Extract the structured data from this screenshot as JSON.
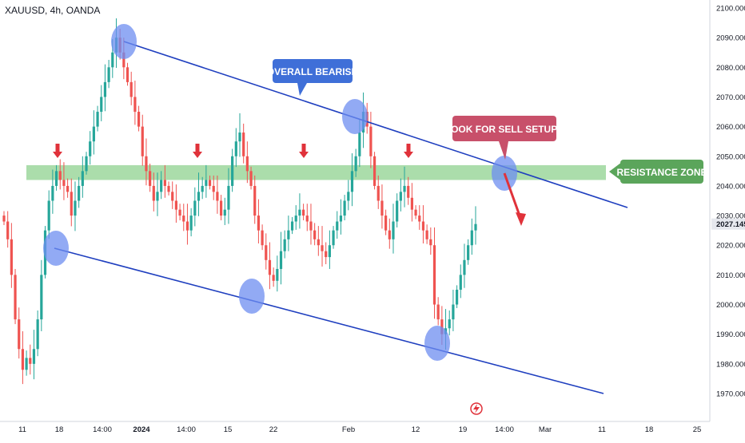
{
  "symbol_label": "XAUUSD, 4h, OANDA",
  "price_axis": {
    "ticks": [
      "2100.000",
      "2090.000",
      "2080.000",
      "2070.000",
      "2060.000",
      "2050.000",
      "2040.000",
      "2030.000",
      "2020.000",
      "2010.000",
      "2000.000",
      "1990.000",
      "1980.000",
      "1970.000"
    ],
    "last_price": "2027.145"
  },
  "time_axis": {
    "ticks": [
      "11",
      "18",
      "14:00",
      "2024",
      "14:00",
      "15",
      "22",
      "Feb",
      "12",
      "19",
      "14:00",
      "Mar",
      "11",
      "18",
      "25"
    ]
  },
  "annotations": {
    "overall_bearish": "OVERALL BEARISH",
    "look_for_sell": "LOOK FOR SELL SETUPS",
    "resistance_zone": "RESISTANCE ZONE"
  },
  "colors": {
    "up": "#26a69a",
    "down": "#ef5350",
    "trendline": "#1f3fbf",
    "zone": "#8fd18f",
    "circle": "#6d8ef0",
    "bearish_box": "#3f6fd8",
    "sell_box": "#c8506a",
    "resistance_box": "#5ba55b",
    "arrow": "#e0323a",
    "last_price_bg": "#e6e8ee"
  },
  "chart_data": {
    "type": "candlestick",
    "y_range": [
      1965,
      2103
    ],
    "ylim_label_unit": "USD",
    "x_ticks": [
      "11",
      "18",
      "14:00",
      "2024",
      "14:00",
      "15",
      "22",
      "Feb",
      "12",
      "19",
      "14:00",
      "Mar",
      "11",
      "18",
      "25"
    ],
    "close_series": [
      2028,
      2022,
      2010,
      1995,
      1985,
      1978,
      1982,
      1980,
      1985,
      1995,
      2010,
      2025,
      2035,
      2040,
      2045,
      2042,
      2040,
      2038,
      2030,
      2035,
      2040,
      2045,
      2050,
      2055,
      2060,
      2065,
      2070,
      2075,
      2080,
      2085,
      2090,
      2085,
      2080,
      2075,
      2070,
      2065,
      2060,
      2050,
      2045,
      2040,
      2035,
      2038,
      2042,
      2040,
      2038,
      2035,
      2032,
      2030,
      2028,
      2025,
      2030,
      2035,
      2038,
      2040,
      2042,
      2040,
      2038,
      2035,
      2030,
      2032,
      2040,
      2050,
      2055,
      2058,
      2050,
      2045,
      2040,
      2030,
      2025,
      2020,
      2015,
      2010,
      2008,
      2012,
      2018,
      2022,
      2025,
      2028,
      2030,
      2032,
      2030,
      2028,
      2025,
      2022,
      2020,
      2018,
      2016,
      2020,
      2025,
      2028,
      2030,
      2035,
      2038,
      2045,
      2050,
      2058,
      2065,
      2060,
      2050,
      2040,
      2035,
      2030,
      2025,
      2022,
      2028,
      2035,
      2038,
      2040,
      2036,
      2032,
      2030,
      2028,
      2025,
      2022,
      2020,
      2000,
      1995,
      1990,
      1992,
      1995,
      2000,
      2005,
      2010,
      2015,
      2020,
      2025,
      2027.145
    ],
    "annotations": [
      "OVERALL BEARISH",
      "LOOK FOR SELL SETUPS",
      "RESISTANCE ZONE"
    ],
    "resistance_zone": [
      2042,
      2047
    ],
    "upper_trendline": [
      {
        "x_index": 30,
        "y": 2090
      },
      {
        "x_index": 160,
        "y": 2033
      }
    ],
    "lower_trendline": [
      {
        "x_index": 14,
        "y": 2019
      },
      {
        "x_index": 150,
        "y": 1970
      }
    ],
    "touch_points": [
      {
        "x_index": 30,
        "y": 2090
      },
      {
        "x_index": 14,
        "y": 2019
      },
      {
        "x_index": 63,
        "y": 2003
      },
      {
        "x_index": 91,
        "y": 2064
      },
      {
        "x_index": 113,
        "y": 1987
      },
      {
        "x_index": 131,
        "y": 2045
      }
    ],
    "sell_arrow_markers_x_index": [
      15,
      50,
      78,
      105
    ],
    "projection_arrow": {
      "from": {
        "x_index": 131,
        "y": 2045
      },
      "to": {
        "x_index": 136,
        "y": 2027
      }
    },
    "legend": "none",
    "grid": false
  }
}
